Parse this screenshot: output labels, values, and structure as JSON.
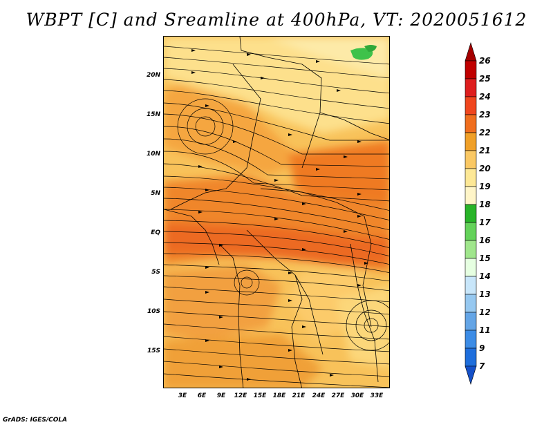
{
  "title": "WBPT [C] and Sreamline at 400hPa, VT: 2020051612",
  "footer": "GrADS: IGES/COLA",
  "map": {
    "lat_labels": [
      "20N",
      "15N",
      "10N",
      "5N",
      "EQ",
      "5S",
      "10S",
      "15S"
    ],
    "lon_labels": [
      "3E",
      "6E",
      "9E",
      "12E",
      "15E",
      "18E",
      "21E",
      "24E",
      "27E",
      "30E",
      "33E"
    ]
  },
  "colorbar": {
    "labels": [
      "26",
      "25",
      "24",
      "23",
      "22",
      "21",
      "20",
      "19",
      "18",
      "17",
      "16",
      "15",
      "14",
      "13",
      "12",
      "11",
      "9",
      "7"
    ],
    "colors": [
      "#a50000",
      "#c00000",
      "#de1e1e",
      "#f0461e",
      "#f06e1e",
      "#f0a028",
      "#fac864",
      "#fde896",
      "#fff5c8",
      "#28b428",
      "#64d25a",
      "#a0e68c",
      "#e6ffe1",
      "#c8e6fa",
      "#96c8f0",
      "#64a5e6",
      "#3c8ce6",
      "#1e6edc",
      "#1450c8"
    ]
  }
}
